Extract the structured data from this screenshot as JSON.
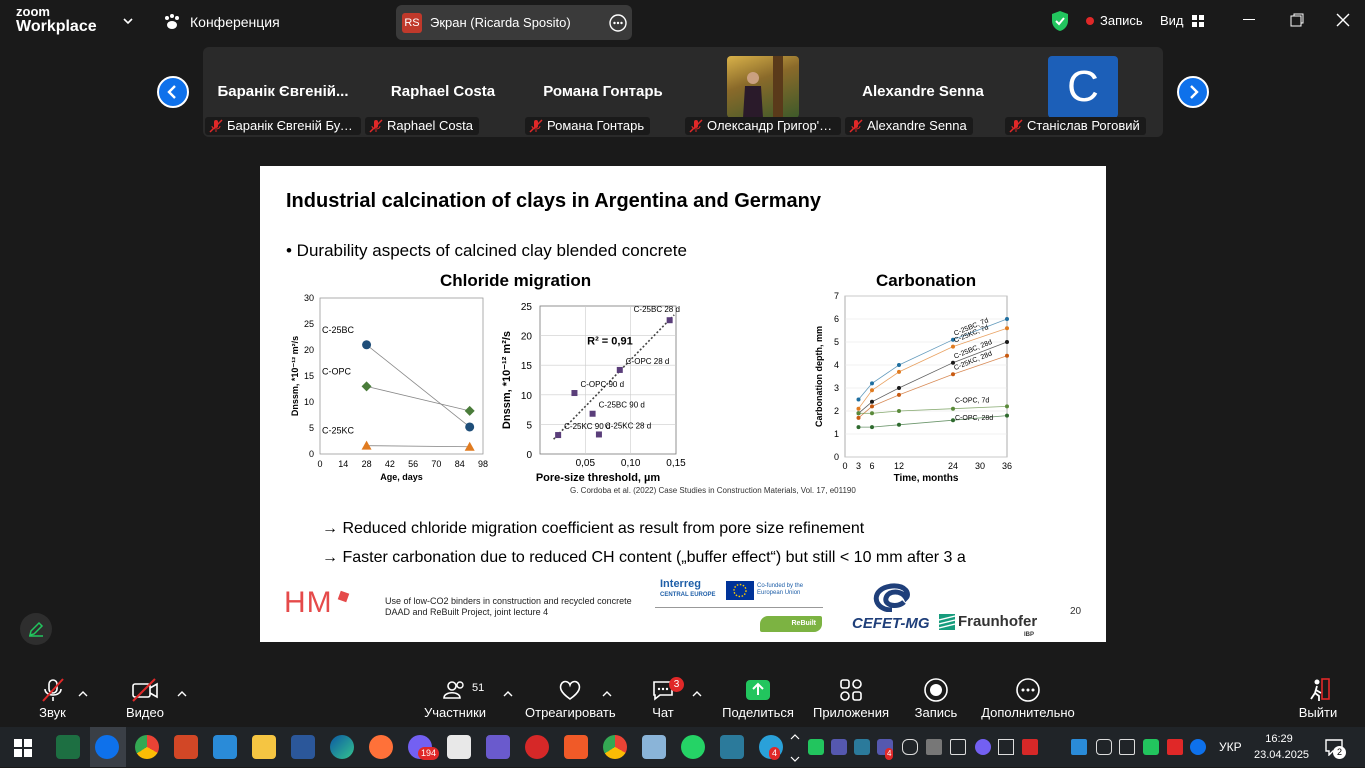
{
  "topbar": {
    "brand_line1": "zoom",
    "brand_line2": "Workplace",
    "meeting_label": "Конференция",
    "share_badge_initials": "RS",
    "share_title": "Экран (Ricarda Sposito)",
    "recording_label": "Запись",
    "view_label": "Вид"
  },
  "participants": [
    {
      "name": "Баранік Євгеній...",
      "label": "Баранік Євгеній Буд ..."
    },
    {
      "name": "Raphael Costa",
      "label": "Raphael Costa"
    },
    {
      "name": "Романа Гонтарь",
      "label": "Романа Гонтарь"
    },
    {
      "name": "",
      "label": "Олександр Григор'є..."
    },
    {
      "name": "Alexandre Senna",
      "label": "Alexandre Senna"
    },
    {
      "name": "C",
      "label": "Станіслав Роговий"
    }
  ],
  "slide": {
    "title": "Industrial calcination of clays in Argentina and Germany",
    "bullet": "• Durability aspects of calcined clay blended concrete",
    "chloride_title": "Chloride migration",
    "carbonation_title": "Carbonation",
    "citation": "G. Cordoba et al. (2022) Case Studies in Construction Materials, Vol. 17, e01190",
    "arrow1": "→ Reduced chloride migration coefficient as result from pore size refinement",
    "arrow2": "→ Faster carbonation due to reduced CH content („buffer effect“) but still < 10 mm after 3 a",
    "footer_line1": "Use of low-CO2 binders in construction and recycled concrete",
    "footer_line2": "DAAD and ReBuilt Project, joint lecture 4",
    "page_number": "20",
    "logo_hm": "HM",
    "logo_interreg": "Interreg",
    "logo_interreg_sub": "CENTRAL EUROPE",
    "logo_eu": "Co-funded by the European Union",
    "logo_rebuilt": "ReBuilt",
    "logo_cefet": "CEFET-MG",
    "logo_fraunhofer": "Fraunhofer",
    "logo_fraunhofer_sub": "IBP"
  },
  "chart_data": [
    {
      "type": "scatter",
      "title": "",
      "xlabel": "Age, days",
      "ylabel": "Dnssm, *10⁻¹² m²/s",
      "xlim": [
        0,
        98
      ],
      "ylim": [
        0,
        30
      ],
      "xticks": [
        "0",
        "14",
        "28",
        "42",
        "56",
        "70",
        "84",
        "98"
      ],
      "yticks": [
        "0",
        "5",
        "10",
        "15",
        "20",
        "25",
        "30"
      ],
      "series": [
        {
          "name": "C-25BC",
          "color": "#1f4e79",
          "x": [
            28,
            90
          ],
          "y": [
            21,
            5.2
          ]
        },
        {
          "name": "C-OPC",
          "color": "#4a7c3a",
          "x": [
            28,
            90
          ],
          "y": [
            13,
            8.3
          ]
        },
        {
          "name": "C-25KC",
          "color": "#e07b20",
          "x": [
            28,
            90
          ],
          "y": [
            1.6,
            1.4
          ]
        }
      ]
    },
    {
      "type": "scatter",
      "title": "",
      "xlabel": "Pore-size threshold, µm",
      "ylabel": "Dnssm, *10⁻¹² m²/s",
      "xlim": [
        0,
        0.15
      ],
      "ylim": [
        0,
        25
      ],
      "xticks": [
        "0,05",
        "0,10",
        "0,15"
      ],
      "yticks": [
        "0",
        "5",
        "10",
        "15",
        "20",
        "25"
      ],
      "annotation": "R² = 0,91",
      "points": [
        {
          "label": "C-25BC 28 d",
          "x": 0.143,
          "y": 22.6
        },
        {
          "label": "C-OPC 28 d",
          "x": 0.088,
          "y": 14.2
        },
        {
          "label": "C-OPC 90 d",
          "x": 0.038,
          "y": 10.3
        },
        {
          "label": "C-25BC 90 d",
          "x": 0.058,
          "y": 6.8
        },
        {
          "label": "C-25KC 90 d",
          "x": 0.02,
          "y": 3.2
        },
        {
          "label": "C-25KC 28 d",
          "x": 0.065,
          "y": 3.3
        }
      ]
    },
    {
      "type": "line",
      "title": "",
      "xlabel": "Time, months",
      "ylabel": "Carbonation depth, mm",
      "xlim": [
        0,
        36
      ],
      "ylim": [
        0,
        7
      ],
      "xticks": [
        "0",
        "3",
        "6",
        "12",
        "24",
        "30",
        "36"
      ],
      "yticks": [
        "0",
        "1",
        "2",
        "3",
        "4",
        "5",
        "6",
        "7"
      ],
      "x": [
        3,
        6,
        12,
        24,
        36
      ],
      "series": [
        {
          "name": "C-25BC, 7d",
          "color": "#1f6fa0",
          "values": [
            2.5,
            3.2,
            4.0,
            5.1,
            6.0
          ]
        },
        {
          "name": "C-25KC, 7d",
          "color": "#e07b20",
          "values": [
            2.1,
            2.9,
            3.7,
            4.8,
            5.6
          ]
        },
        {
          "name": "C-25BC, 28d",
          "color": "#1a1a1a",
          "values": [
            1.9,
            2.4,
            3.0,
            4.1,
            5.0
          ]
        },
        {
          "name": "C-25KC, 28d",
          "color": "#c85a10",
          "values": [
            1.7,
            2.2,
            2.7,
            3.6,
            4.4
          ]
        },
        {
          "name": "C-OPC, 7d",
          "color": "#5a8a3a",
          "values": [
            1.9,
            1.9,
            2.0,
            2.1,
            2.2
          ]
        },
        {
          "name": "C-OPC, 28d",
          "color": "#2e6a2e",
          "values": [
            1.3,
            1.3,
            1.4,
            1.6,
            1.8
          ]
        }
      ]
    }
  ],
  "controls": {
    "audio_label": "Звук",
    "video_label": "Видео",
    "participants_label": "Участники",
    "participants_count": "51",
    "react_label": "Отреагировать",
    "chat_label": "Чат",
    "chat_badge": "3",
    "share_label": "Поделиться",
    "apps_label": "Приложения",
    "record_label": "Запись",
    "more_label": "Дополнительно",
    "leave_label": "Выйти"
  },
  "taskbar": {
    "viber_badge": "194",
    "telegram_badge": "4",
    "teams_badge": "4",
    "lang": "УКР",
    "time": "16:29",
    "date": "23.04.2025",
    "notif_badge": "2"
  },
  "colors": {
    "accent": "#0e71eb",
    "recording": "#e02828",
    "share_green": "#22c55e",
    "background": "#1a1a1a"
  }
}
